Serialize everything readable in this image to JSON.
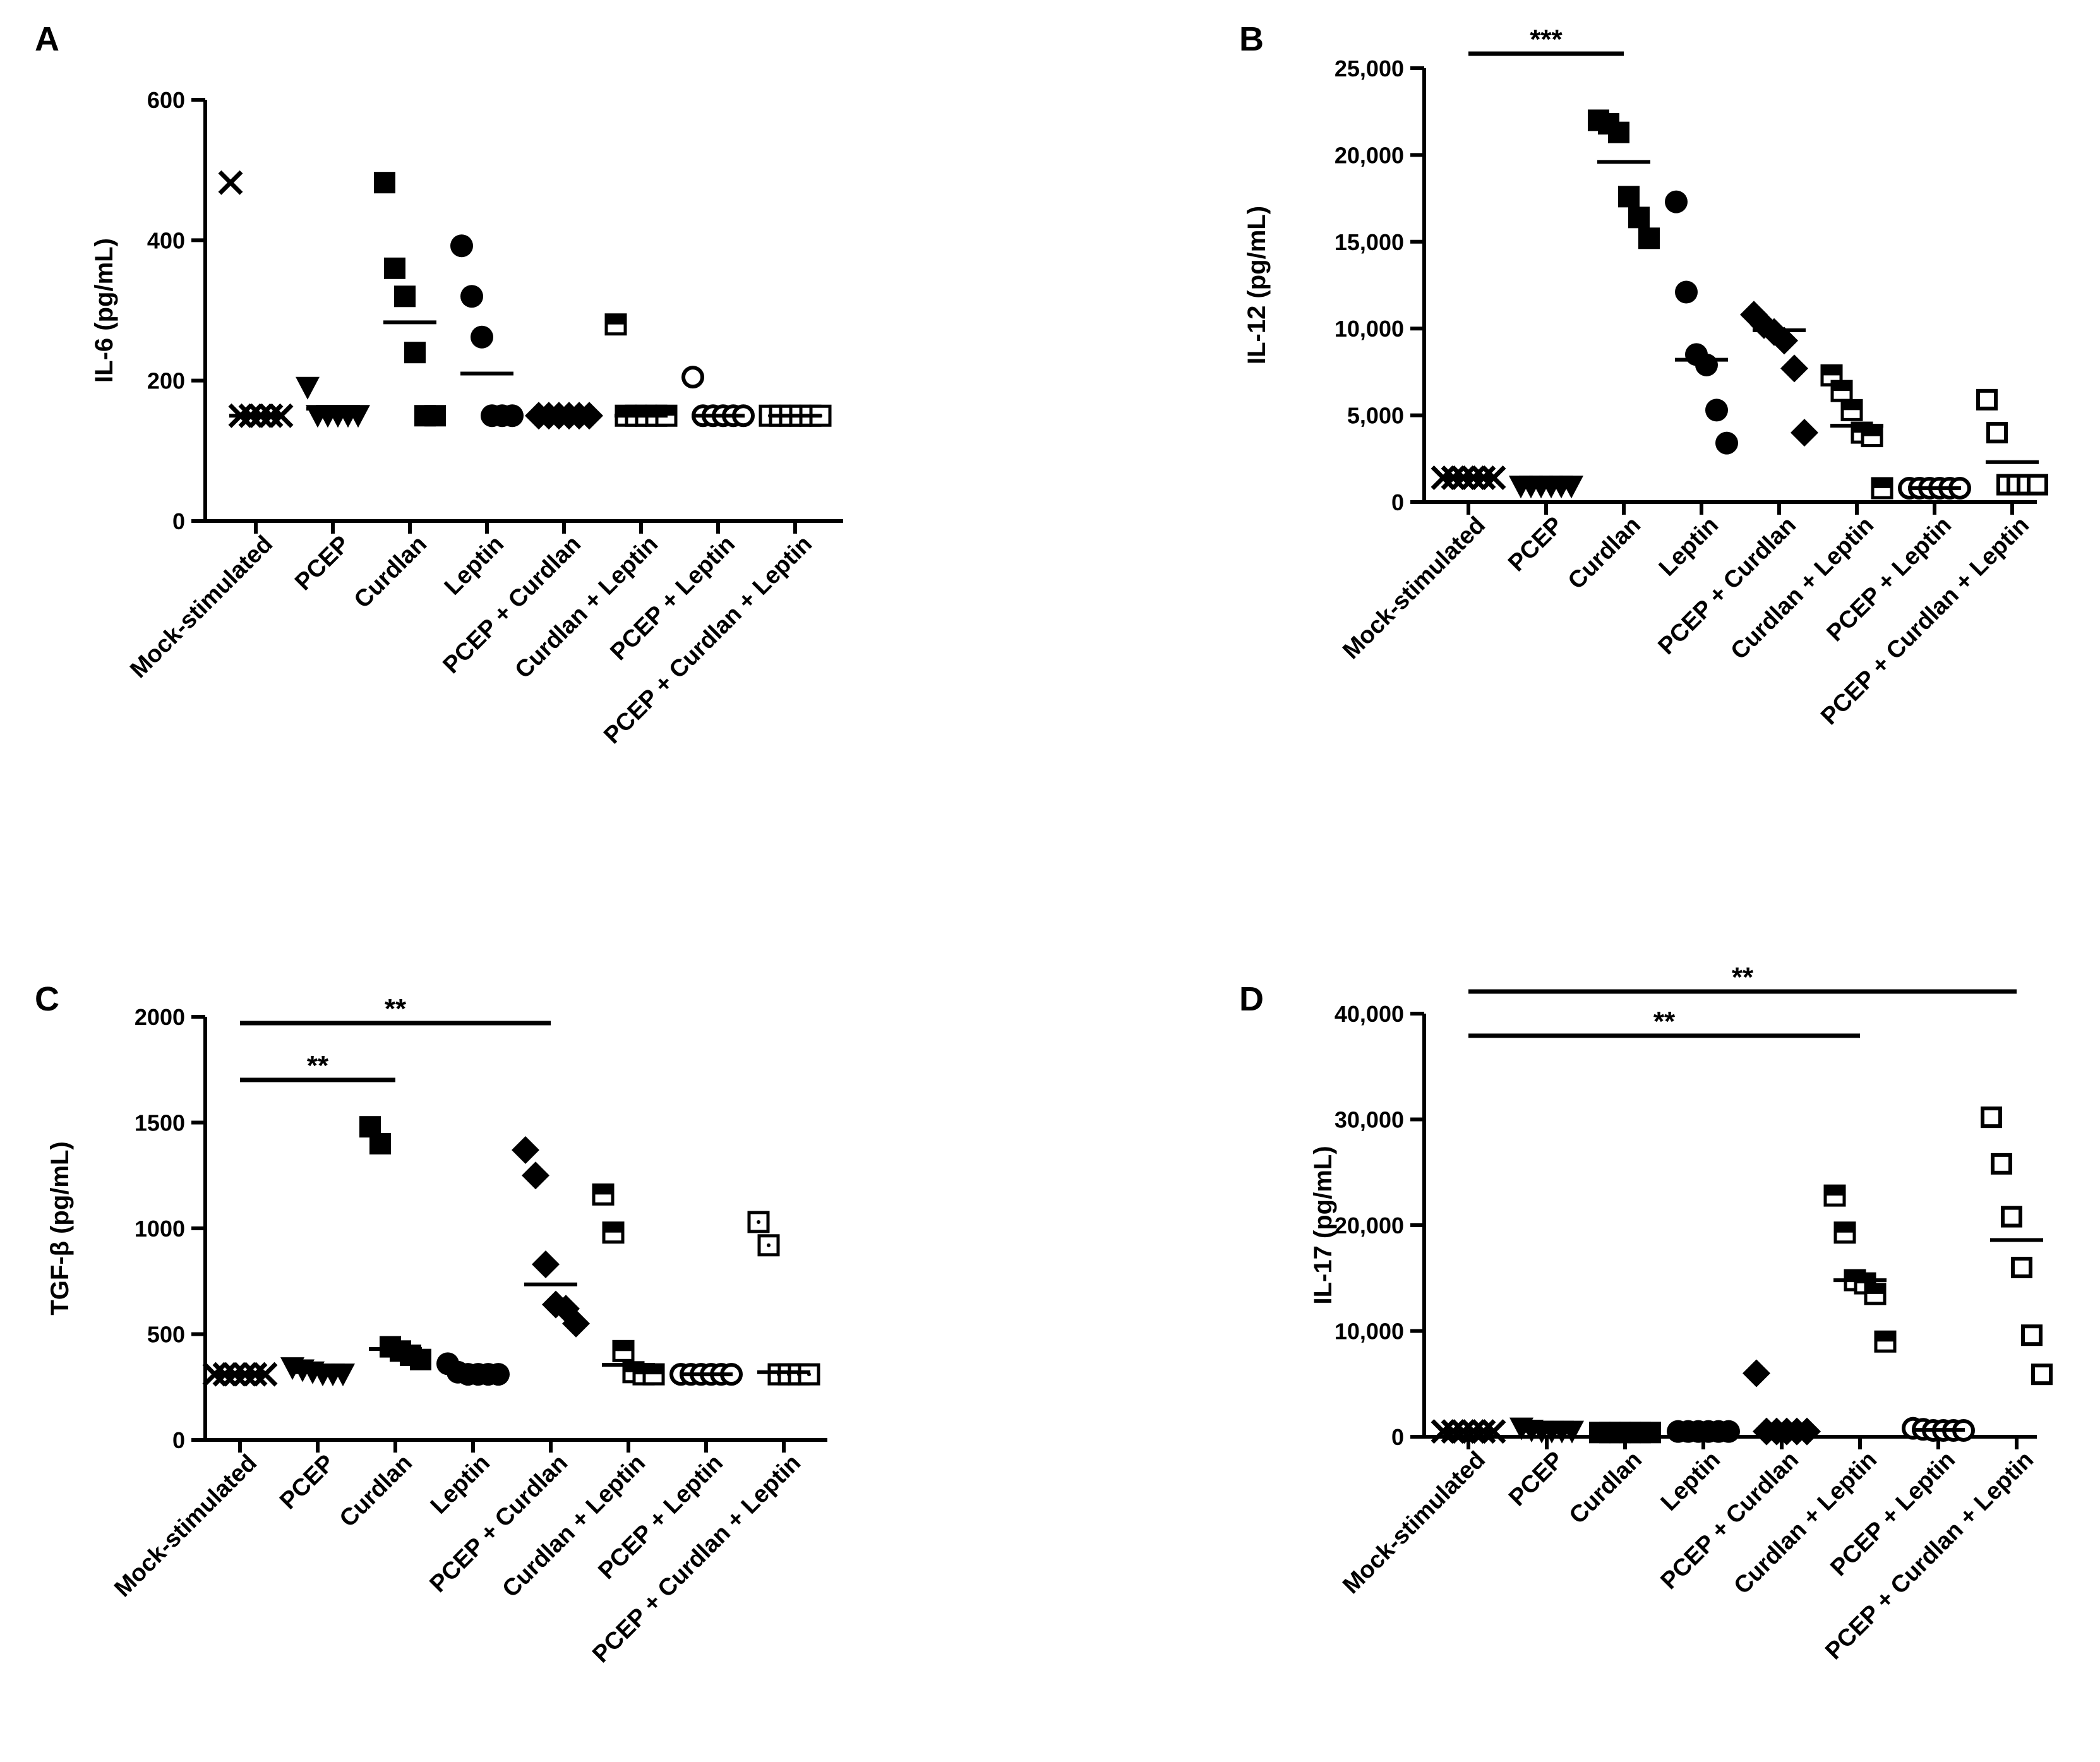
{
  "chart_data": [
    {
      "panel": "A",
      "type": "scatter",
      "ylabel": "IL-6 (pg/mL)",
      "ylim": [
        0,
        600
      ],
      "yticks": [
        0,
        200,
        400,
        600
      ],
      "ytick_labels": [
        "0",
        "200",
        "400",
        "600"
      ],
      "categories": [
        "Mock-stimulated",
        "PCEP",
        "Curdlan",
        "Leptin",
        "PCEP + Curdlan",
        "Curdlan + Leptin",
        "PCEP + Leptin",
        "PCEP + Curdlan + Leptin"
      ],
      "markers": [
        "x",
        "triangle-down",
        "square",
        "circle",
        "diamond",
        "square-half",
        "circle-open",
        "square-dotted"
      ],
      "points": [
        [
          482,
          150,
          150,
          150,
          150,
          150
        ],
        [
          190,
          150,
          150,
          150,
          150,
          150
        ],
        [
          482,
          360,
          320,
          240,
          150,
          150
        ],
        [
          392,
          320,
          262,
          150,
          150,
          150
        ],
        [
          150,
          150,
          150,
          150,
          150,
          150
        ],
        [
          280,
          150,
          150,
          150,
          150,
          150
        ],
        [
          205,
          150,
          150,
          150,
          150,
          150
        ],
        [
          150,
          150,
          150,
          150,
          150,
          150
        ]
      ],
      "means": [
        150,
        160,
        283,
        210,
        150,
        150,
        150,
        150
      ],
      "significance": []
    },
    {
      "panel": "B",
      "type": "scatter",
      "ylabel": "IL-12 (pg/mL)",
      "ylim": [
        0,
        25000
      ],
      "yticks": [
        0,
        5000,
        10000,
        15000,
        20000,
        25000
      ],
      "ytick_labels": [
        "0",
        "5,000",
        "10,000",
        "15,000",
        "20,000",
        "25,000"
      ],
      "categories": [
        "Mock-stimulated",
        "PCEP",
        "Curdlan",
        "Leptin",
        "PCEP + Curdlan",
        "Curdlan + Leptin",
        "PCEP + Leptin",
        "PCEP + Curdlan + Leptin"
      ],
      "markers": [
        "x",
        "triangle-down",
        "square",
        "circle",
        "diamond",
        "square-half",
        "circle-open",
        "square-open"
      ],
      "points": [
        [
          1400,
          1400,
          1400,
          1400,
          1400,
          1400
        ],
        [
          900,
          900,
          900,
          900,
          900,
          900
        ],
        [
          22000,
          21800,
          21300,
          17600,
          16400,
          15200
        ],
        [
          17300,
          12100,
          8500,
          7900,
          5300,
          3400
        ],
        [
          10800,
          10200,
          9800,
          9300,
          7700,
          4000
        ],
        [
          7300,
          6400,
          5300,
          4000,
          3800,
          800
        ],
        [
          800,
          800,
          800,
          800,
          800,
          800
        ],
        [
          5900,
          4000,
          1000,
          1000,
          1000,
          1000
        ]
      ],
      "means": [
        1400,
        900,
        19600,
        8200,
        9900,
        4400,
        800,
        2300
      ],
      "significance": [
        {
          "from": 0,
          "to": 2,
          "label": "***"
        }
      ]
    },
    {
      "panel": "C",
      "type": "scatter",
      "ylabel": "TGF-β (pg/mL)",
      "ylim": [
        0,
        2000
      ],
      "yticks": [
        0,
        500,
        1000,
        1500,
        2000
      ],
      "ytick_labels": [
        "0",
        "500",
        "1000",
        "1500",
        "2000"
      ],
      "categories": [
        "Mock-stimulated",
        "PCEP",
        "Curdlan",
        "Leptin",
        "PCEP + Curdlan",
        "Curdlan + Leptin",
        "PCEP + Leptin",
        "PCEP + Curdlan + Leptin"
      ],
      "markers": [
        "x",
        "triangle-down",
        "square",
        "circle",
        "diamond",
        "square-half",
        "circle-open",
        "square-dotted"
      ],
      "points": [
        [
          310,
          310,
          310,
          310,
          310,
          310
        ],
        [
          340,
          330,
          320,
          310,
          310,
          310
        ],
        [
          1480,
          1400,
          440,
          420,
          400,
          380
        ],
        [
          360,
          320,
          310,
          310,
          310,
          310
        ],
        [
          1370,
          1250,
          830,
          640,
          620,
          550
        ],
        [
          1160,
          980,
          420,
          320,
          310,
          310
        ],
        [
          310,
          310,
          310,
          310,
          310,
          310
        ],
        [
          1030,
          920,
          310,
          310,
          310,
          310
        ]
      ],
      "means": [
        310,
        320,
        430,
        320,
        735,
        355,
        310,
        320
      ],
      "significance": [
        {
          "from": 0,
          "to": 2,
          "label": "**"
        },
        {
          "from": 0,
          "to": 4,
          "label": "**"
        }
      ]
    },
    {
      "panel": "D",
      "type": "scatter",
      "ylabel": "IL-17 (pg/mL)",
      "ylim": [
        0,
        40000
      ],
      "yticks": [
        0,
        10000,
        20000,
        30000,
        40000
      ],
      "ytick_labels": [
        "0",
        "10,000",
        "20,000",
        "30,000",
        "40,000"
      ],
      "categories": [
        "Mock-stimulated",
        "PCEP",
        "Curdlan",
        "Leptin",
        "PCEP + Curdlan",
        "Curdlan + Leptin",
        "PCEP + Leptin",
        "PCEP + Curdlan + Leptin"
      ],
      "markers": [
        "x",
        "triangle-down",
        "square",
        "circle",
        "diamond",
        "square-half",
        "circle-open",
        "square-open"
      ],
      "points": [
        [
          500,
          500,
          500,
          500,
          500,
          500
        ],
        [
          800,
          600,
          500,
          500,
          500,
          500
        ],
        [
          400,
          400,
          400,
          400,
          400,
          400
        ],
        [
          500,
          500,
          500,
          500,
          500,
          500
        ],
        [
          6000,
          500,
          500,
          500,
          500,
          500
        ],
        [
          22800,
          19300,
          14800,
          14500,
          13500,
          9000
        ],
        [
          800,
          700,
          600,
          600,
          600,
          600
        ],
        [
          30200,
          25800,
          20800,
          16000,
          9600,
          5900
        ]
      ],
      "means": [
        500,
        550,
        400,
        500,
        500,
        14800,
        650,
        18600
      ],
      "significance": [
        {
          "from": 0,
          "to": 5,
          "label": "**"
        },
        {
          "from": 0,
          "to": 7,
          "label": "**"
        }
      ]
    }
  ]
}
